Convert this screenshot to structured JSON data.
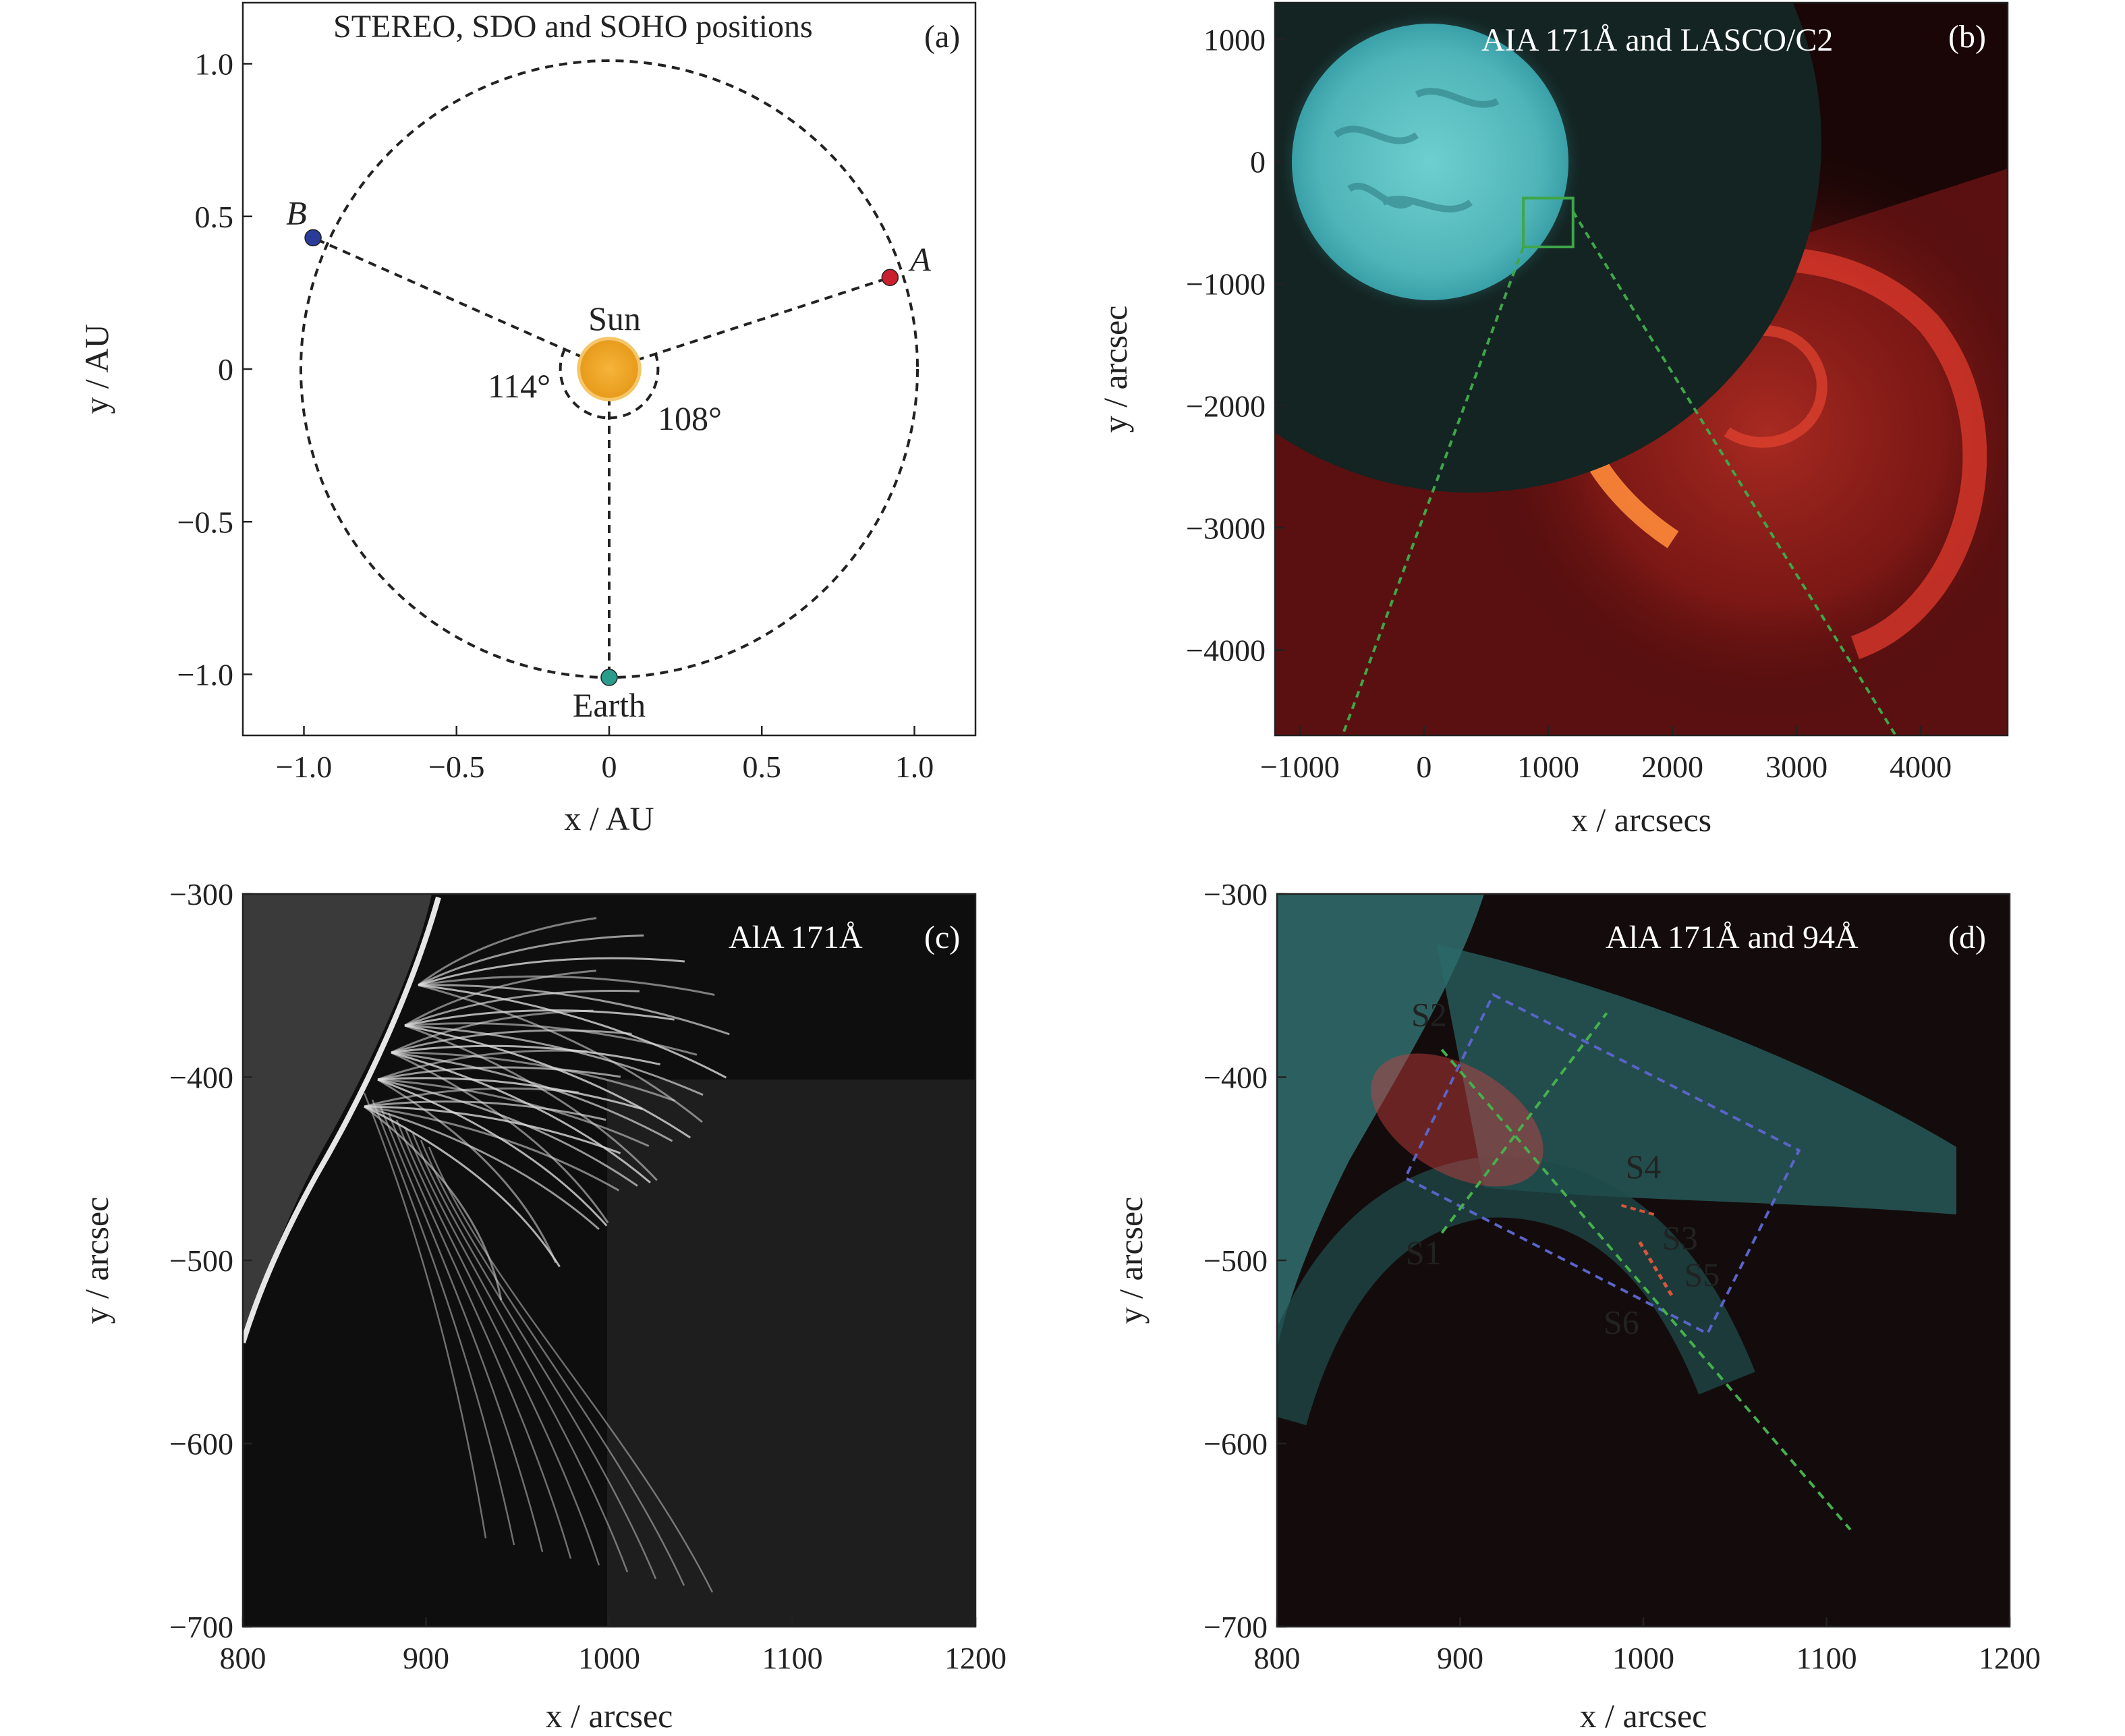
{
  "figure": {
    "panels": [
      {
        "id": "a",
        "title": "STEREO, SDO and SOHO positions",
        "label": "(a)"
      },
      {
        "id": "b",
        "title": "AIA 171Å and LASCO/C2",
        "label": "(b)"
      },
      {
        "id": "c",
        "title": "AlA 171Å",
        "label": "(c)"
      },
      {
        "id": "d",
        "title": "AlA 171Å and 94Å",
        "label": "(d)"
      }
    ]
  },
  "colors": {
    "sun": "#f0a421",
    "stereo_a": "#c8202e",
    "stereo_b": "#2b3b9a",
    "earth": "#2a9c8c",
    "aia171": "#5fc6c8",
    "lasco": "#d42a22",
    "box_green": "#3fa64a",
    "slit_green": "#46b04c",
    "slit_red": "#d8553c",
    "slit_blue": "#5a64c8",
    "slit_orange": "#c88a3c"
  },
  "chart_data": [
    {
      "panel": "a",
      "type": "scatter",
      "title": "STEREO, SDO and SOHO positions",
      "xlabel": "x / AU",
      "ylabel": "y / AU",
      "xlim": [
        -1.2,
        1.2
      ],
      "ylim": [
        -1.2,
        1.2
      ],
      "xticks": [
        -1.0,
        -0.5,
        0,
        0.5,
        1.0
      ],
      "xtick_labels": [
        "−1.0",
        "−0.5",
        "0",
        "0.5",
        "1.0"
      ],
      "yticks": [
        -1.0,
        -0.5,
        0,
        0.5,
        1.0
      ],
      "ytick_labels": [
        "−1.0",
        "−0.5",
        "0",
        "0.5",
        "1.0"
      ],
      "grid": false,
      "orbit_radius": 1.01,
      "points": [
        {
          "name": "Sun",
          "x": 0,
          "y": 0
        },
        {
          "name": "A",
          "x": 0.92,
          "y": 0.3
        },
        {
          "name": "B",
          "x": -0.97,
          "y": 0.43
        },
        {
          "name": "Earth",
          "x": 0,
          "y": -1.01
        }
      ],
      "angles": [
        {
          "label": "114°",
          "between": [
            "Earth",
            "B"
          ]
        },
        {
          "label": "108°",
          "between": [
            "Earth",
            "A"
          ]
        }
      ]
    },
    {
      "panel": "b",
      "type": "heatmap",
      "title": "AIA 171Å and LASCO/C2",
      "xlabel": "x / arcsecs",
      "ylabel": "y / arcsec",
      "xlim": [
        -1200,
        4700
      ],
      "ylim": [
        -4700,
        1300
      ],
      "xticks": [
        -1000,
        0,
        1000,
        2000,
        3000,
        4000
      ],
      "xtick_labels": [
        "−1000",
        "0",
        "1000",
        "2000",
        "3000",
        "4000"
      ],
      "yticks": [
        1000,
        0,
        -1000,
        -2000,
        -3000,
        -4000
      ],
      "ytick_labels": [
        "1000",
        "0",
        "−1000",
        "−2000",
        "−3000",
        "−4000"
      ],
      "grid": false,
      "zoom_box": {
        "x": [
          800,
          1200
        ],
        "y": [
          -700,
          -300
        ]
      }
    },
    {
      "panel": "c",
      "type": "heatmap",
      "title": "AlA 171Å",
      "xlabel": "x / arcsec",
      "ylabel": "y / arcsec",
      "xlim": [
        800,
        1200
      ],
      "ylim": [
        -700,
        -300
      ],
      "xticks": [
        800,
        900,
        1000,
        1100,
        1200
      ],
      "xtick_labels": [
        "800",
        "900",
        "1000",
        "1100",
        "1200"
      ],
      "yticks": [
        -300,
        -400,
        -500,
        -600,
        -700
      ],
      "ytick_labels": [
        "−300",
        "−400",
        "−500",
        "−600",
        "−700"
      ],
      "grid": false
    },
    {
      "panel": "d",
      "type": "heatmap",
      "title": "AlA 171Å and 94Å",
      "xlabel": "x / arcsec",
      "ylabel": "y / arcsec",
      "xlim": [
        800,
        1200
      ],
      "ylim": [
        -700,
        -300
      ],
      "xticks": [
        800,
        900,
        1000,
        1100,
        1200
      ],
      "xtick_labels": [
        "800",
        "900",
        "1000",
        "1100",
        "1200"
      ],
      "yticks": [
        -300,
        -400,
        -500,
        -600,
        -700
      ],
      "ytick_labels": [
        "−300",
        "−400",
        "−500",
        "−600",
        "−700"
      ],
      "grid": false,
      "slit_labels": [
        {
          "name": "S1",
          "x": 880,
          "y": -502
        },
        {
          "name": "S2",
          "x": 883,
          "y": -372
        },
        {
          "name": "S3",
          "x": 1020,
          "y": -494
        },
        {
          "name": "S4",
          "x": 1000,
          "y": -455
        },
        {
          "name": "S5",
          "x": 1032,
          "y": -514
        },
        {
          "name": "S6",
          "x": 988,
          "y": -540
        }
      ]
    }
  ]
}
